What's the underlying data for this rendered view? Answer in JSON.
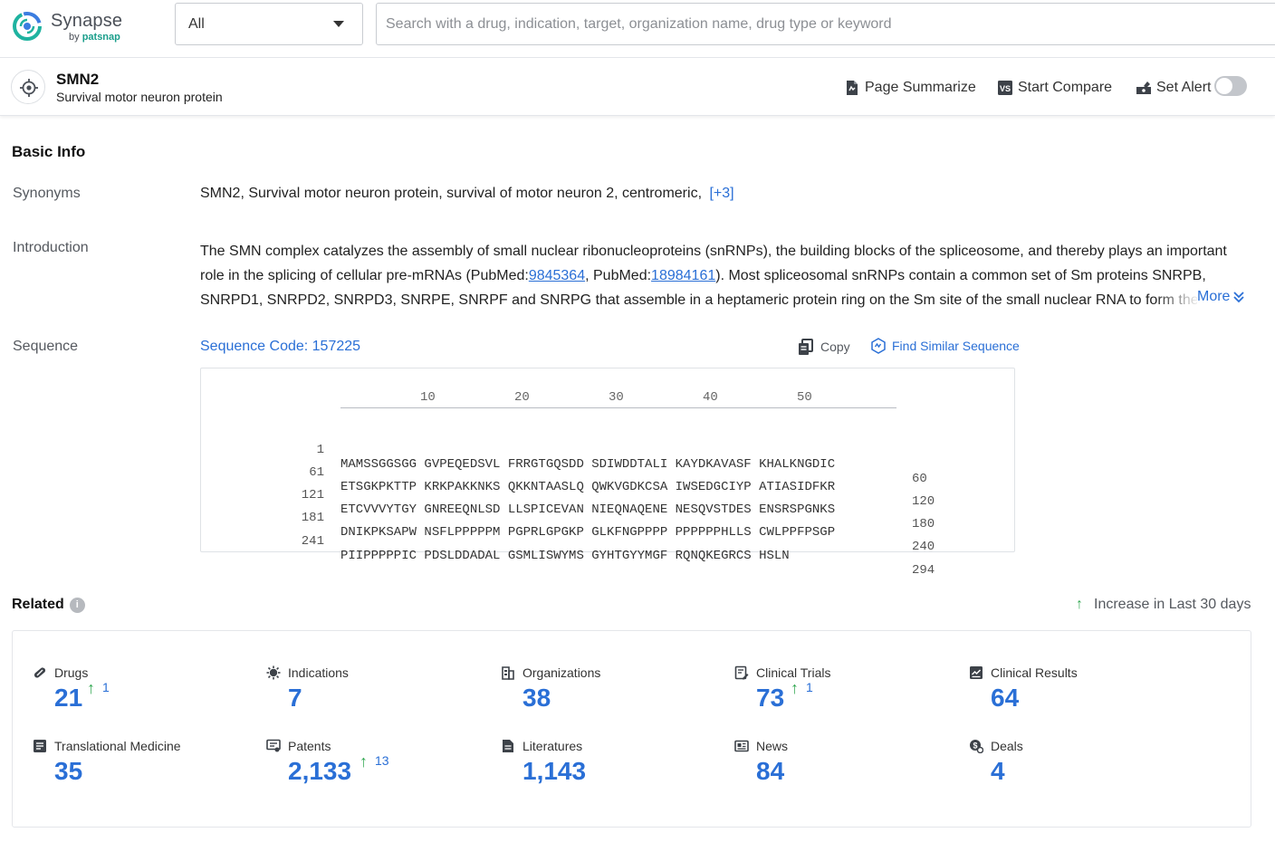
{
  "brand": {
    "name": "Synapse",
    "by_prefix": "by",
    "by_company": "patsnap"
  },
  "search": {
    "scope_value": "All",
    "placeholder": "Search with a drug, indication, target, organization name, drug type or keyword"
  },
  "target": {
    "name": "SMN2",
    "full_name": "Survival motor neuron protein"
  },
  "actions": {
    "summarize": "Page Summarize",
    "compare": "Start Compare",
    "alert": "Set Alert",
    "alert_enabled": false
  },
  "basic_info": {
    "title": "Basic Info",
    "synonyms_label": "Synonyms",
    "synonyms_text": "SMN2,  Survival motor neuron protein,  survival of motor neuron 2, centromeric,",
    "synonyms_more": "[+3]",
    "intro_label": "Introduction",
    "intro_part1": "The SMN complex catalyzes the assembly of small nuclear ribonucleoproteins (snRNPs), the building blocks of the spliceosome, and thereby plays an important role in the splicing of cellular pre-mRNAs (PubMed:",
    "intro_link1": "9845364",
    "intro_part2": ", PubMed:",
    "intro_link2": "18984161",
    "intro_part3": "). Most spliceosomal snRNPs contain a common set of Sm proteins SNRPB, SNRPD1, SNRPD2, SNRPD3, SNRPE, SNRPF and SNRPG that assemble in a heptameric protein ring on the Sm site of the small nuclear RNA to form the core snRNP.",
    "intro_more": "More",
    "sequence_label": "Sequence",
    "sequence_code": "Sequence Code: 157225",
    "copy_label": "Copy",
    "find_similar_label": "Find Similar Sequence"
  },
  "sequence": {
    "ruler": [
      "10",
      "20",
      "30",
      "40",
      "50"
    ],
    "rows": [
      {
        "start": "1",
        "residues": "MAMSSGGSGG GVPEQEDSVL FRRGTGQSDD SDIWDDTALI KAYDKAVASF KHALKNGDIC",
        "end": "60"
      },
      {
        "start": "61",
        "residues": "ETSGKPKTTP KRKPAKKNKS QKKNTAASLQ QWKVGDKCSA IWSEDGCIYP ATIASIDFKR",
        "end": "120"
      },
      {
        "start": "121",
        "residues": "ETCVVVYTGY GNREEQNLSD LLSPICEVAN NIEQNAQENE NESQVSTDES ENSRSPGNKS",
        "end": "180"
      },
      {
        "start": "181",
        "residues": "DNIKPKSAPW NSFLPPPPPM PGPRLGPGKP GLKFNGPPPP PPPPPPHLLS CWLPPFPSGP",
        "end": "240"
      },
      {
        "start": "241",
        "residues": "PIIPPPPPIC PDSLDDADAL GSMLISWYMS GYHTGYYMGF RQNQKEGRCS HSLN",
        "end": "294"
      }
    ]
  },
  "related": {
    "title": "Related",
    "increase_note": "Increase in Last 30 days",
    "stats": [
      {
        "label": "Drugs",
        "value": "21",
        "increase": "1",
        "icon": "pill-icon"
      },
      {
        "label": "Indications",
        "value": "7",
        "increase": "",
        "icon": "virus-icon"
      },
      {
        "label": "Organizations",
        "value": "38",
        "increase": "",
        "icon": "building-icon"
      },
      {
        "label": "Clinical Trials",
        "value": "73",
        "increase": "1",
        "icon": "clipboard-edit-icon"
      },
      {
        "label": "Clinical Results",
        "value": "64",
        "increase": "",
        "icon": "chart-doc-icon"
      },
      {
        "label": "Translational Medicine",
        "value": "35",
        "increase": "",
        "icon": "doc-list-icon"
      },
      {
        "label": "Patents",
        "value": "2,133",
        "increase": "13",
        "icon": "patent-icon"
      },
      {
        "label": "Literatures",
        "value": "1,143",
        "increase": "",
        "icon": "document-icon"
      },
      {
        "label": "News",
        "value": "84",
        "increase": "",
        "icon": "newspaper-icon"
      },
      {
        "label": "Deals",
        "value": "4",
        "increase": "",
        "icon": "deal-icon"
      }
    ]
  },
  "colors": {
    "link": "#2a6fd6",
    "increase_arrow": "#34a853",
    "brand_teal": "#1a9e8b"
  }
}
